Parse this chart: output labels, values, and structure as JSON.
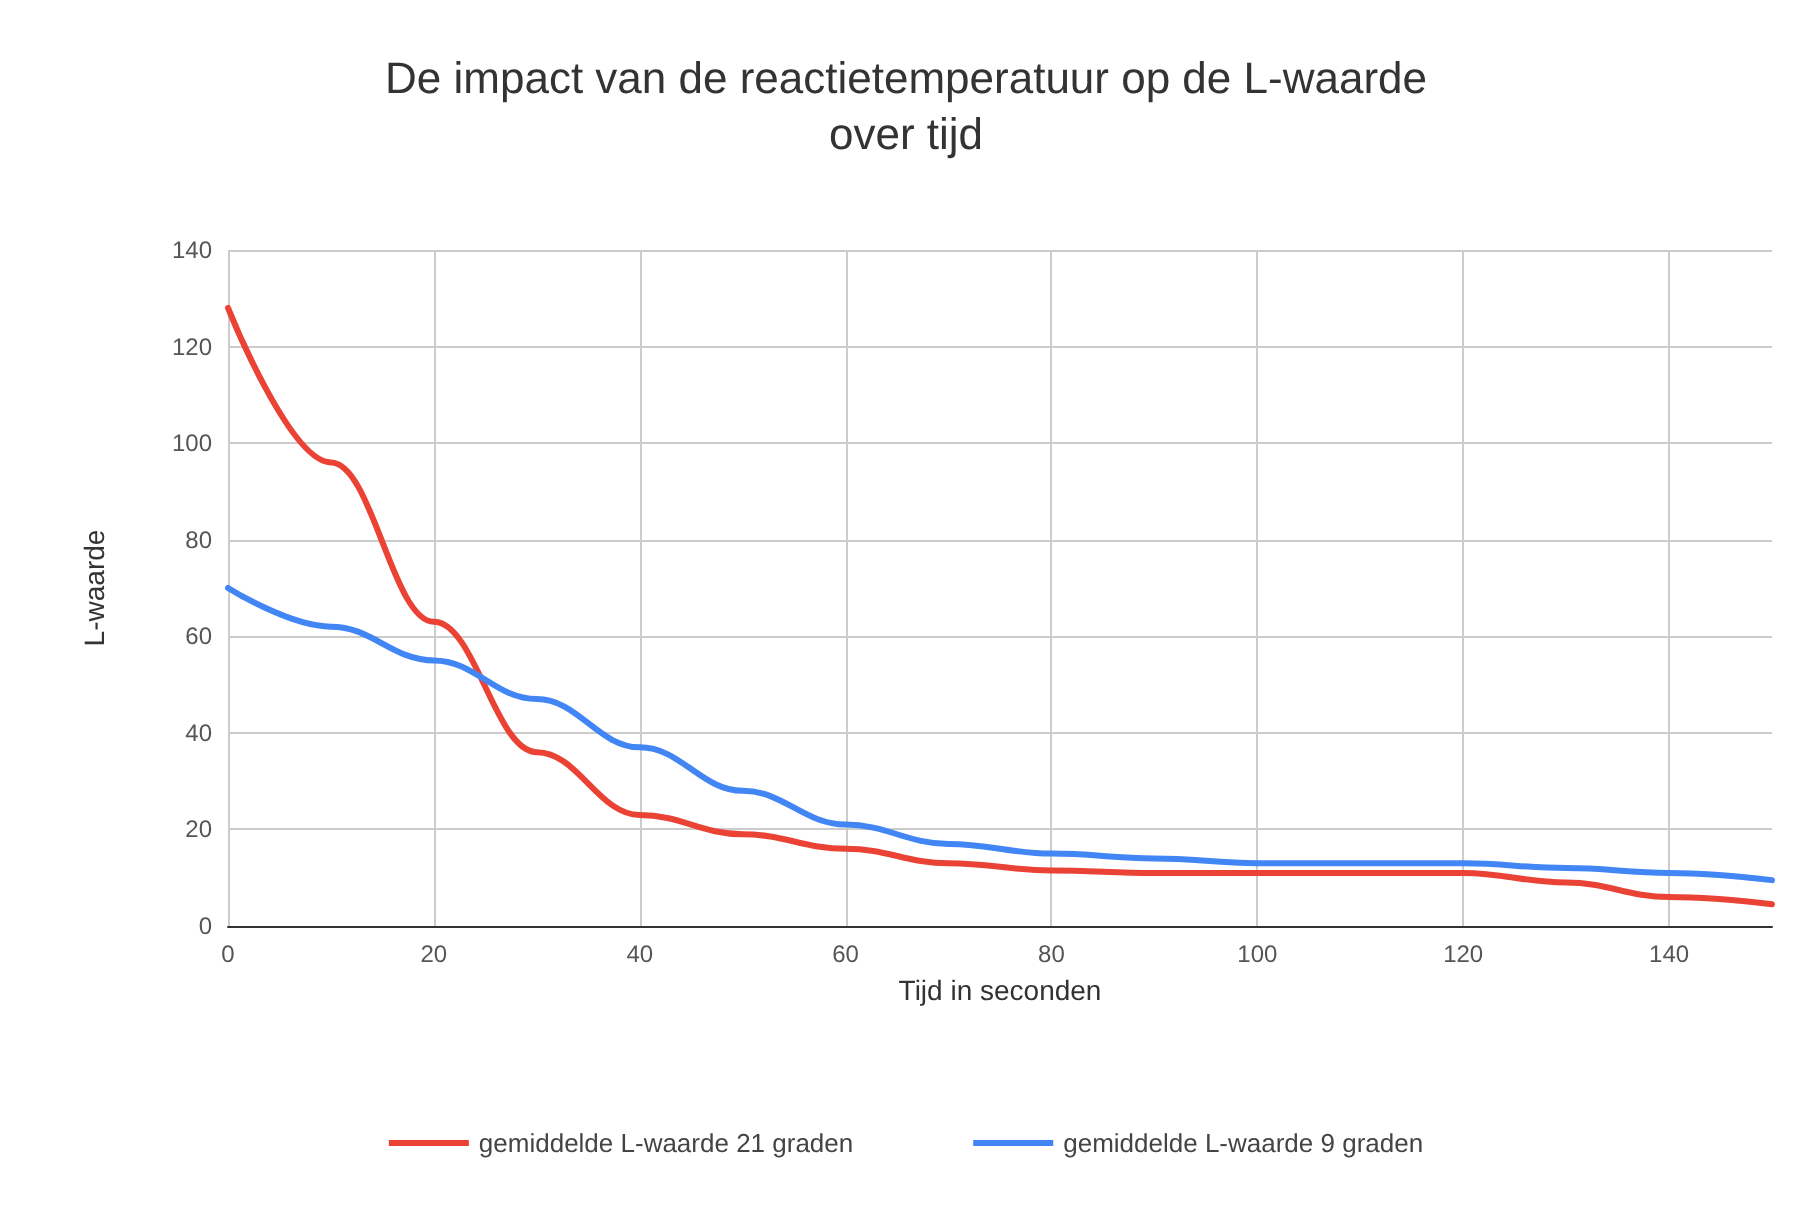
{
  "chart_data": {
    "type": "line",
    "title": "De impact van de reactietemperatuur op de L-waarde\nover tijd",
    "xlabel": "Tijd in seconden",
    "ylabel": "L-waarde",
    "x": [
      0,
      10,
      20,
      30,
      40,
      50,
      60,
      70,
      80,
      90,
      100,
      110,
      120,
      130,
      140,
      150
    ],
    "series": [
      {
        "name": "gemiddelde L-waarde 21 graden",
        "color": "#ea4335",
        "values": [
          128,
          96,
          63,
          36,
          23,
          19,
          16,
          13,
          11.5,
          11,
          11,
          11,
          11,
          9,
          6,
          4.5
        ]
      },
      {
        "name": "gemiddelde L-waarde 9 graden",
        "color": "#4285f4",
        "values": [
          70,
          62,
          55,
          47,
          37,
          28,
          21,
          17,
          15,
          14,
          13,
          13,
          13,
          12,
          11,
          9.5
        ]
      }
    ],
    "xlim": [
      0,
      150
    ],
    "xticks": [
      0,
      20,
      40,
      60,
      80,
      100,
      120,
      140
    ],
    "ylim": [
      0,
      140
    ],
    "yticks": [
      0,
      20,
      40,
      60,
      80,
      100,
      120,
      140
    ],
    "grid": true,
    "legend": "bottom",
    "marker": "none",
    "line_style": "solid"
  }
}
